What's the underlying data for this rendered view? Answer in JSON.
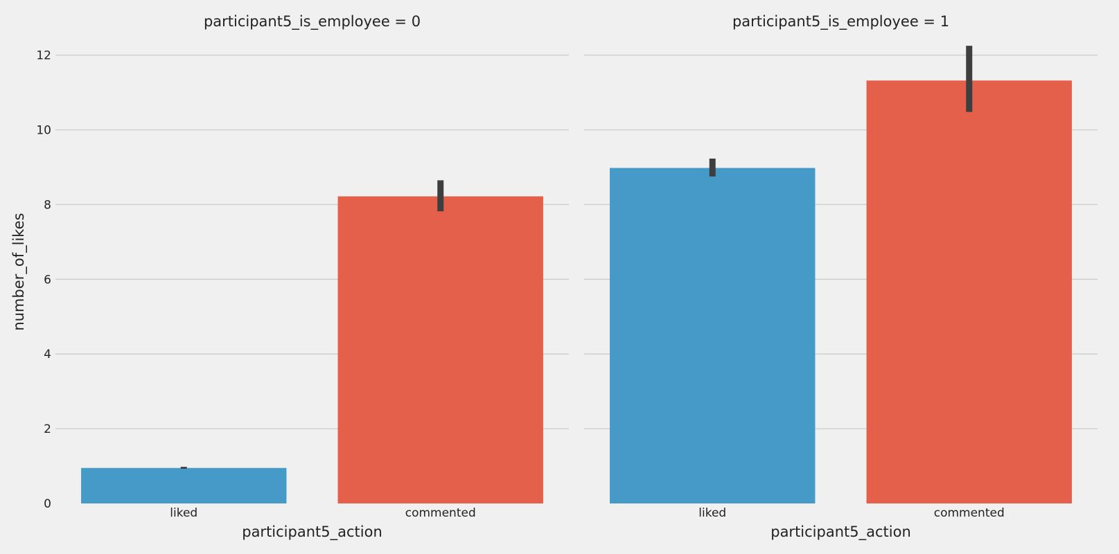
{
  "chart_data": {
    "type": "bar",
    "ylabel": "number_of_likes",
    "xlabel": "participant5_action",
    "ylim": [
      0,
      12.4
    ],
    "yticks": [
      0,
      2,
      4,
      6,
      8,
      10,
      12
    ],
    "grid": true,
    "colors": {
      "liked": "#469ac7",
      "commented": "#e4604a"
    },
    "panels": [
      {
        "title": "participant5_is_employee = 0",
        "categories": [
          "liked",
          "commented"
        ],
        "values": [
          0.95,
          8.22
        ],
        "error_low": [
          0.93,
          7.82
        ],
        "error_high": [
          0.98,
          8.65
        ]
      },
      {
        "title": "participant5_is_employee = 1",
        "categories": [
          "liked",
          "commented"
        ],
        "values": [
          8.98,
          11.32
        ],
        "error_low": [
          8.75,
          10.48
        ],
        "error_high": [
          9.23,
          12.25
        ]
      }
    ]
  }
}
